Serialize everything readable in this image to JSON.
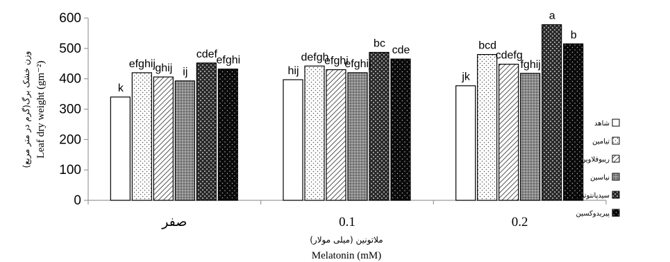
{
  "chart_data": {
    "type": "bar",
    "categories": [
      "صفر",
      "0.1",
      "0.2"
    ],
    "series": [
      {
        "name": "شاهد",
        "values": [
          340,
          397,
          377
        ],
        "labels": [
          "k",
          "hij",
          "jk"
        ],
        "pattern": "white"
      },
      {
        "name": "تیامین",
        "values": [
          420,
          442,
          480
        ],
        "labels": [
          "efghij",
          "defgh",
          "bcd"
        ],
        "pattern": "dots"
      },
      {
        "name": "ریبوفلاوین",
        "values": [
          406,
          430,
          448
        ],
        "labels": [
          "ghij",
          "efghi",
          "cdefg"
        ],
        "pattern": "diag"
      },
      {
        "name": "نیاسین",
        "values": [
          393,
          420,
          418
        ],
        "labels": [
          "ij",
          "efghij",
          "fghij"
        ],
        "pattern": "gray"
      },
      {
        "name": "سیدپانتوتنیک",
        "values": [
          452,
          487,
          578
        ],
        "labels": [
          "cdef",
          "bc",
          "a"
        ],
        "pattern": "darkcheck"
      },
      {
        "name": "پیریدوکسین",
        "values": [
          432,
          465,
          515
        ],
        "labels": [
          "efghi",
          "cde",
          "b"
        ],
        "pattern": "blackdots"
      }
    ],
    "ylim": [
      0,
      600
    ],
    "yticks": [
      0,
      100,
      200,
      300,
      400,
      500,
      600
    ],
    "ylabel_fa": "(گرم در متر مربع)وزن خشک برگ",
    "ylabel_en": "Leaf dry weight (gm⁻²)",
    "xlabel_fa": "ملاتونین (میلی مولار)",
    "xlabel_en": "Melatonin (mM)",
    "legend_position": "right"
  }
}
